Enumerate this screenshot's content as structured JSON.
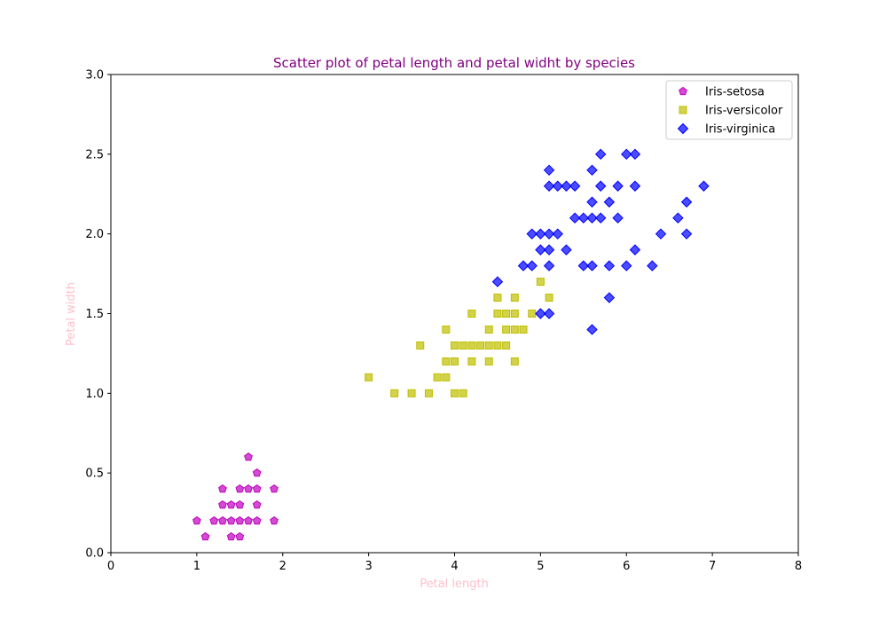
{
  "chart_data": {
    "type": "scatter",
    "title": "Scatter plot of petal length and petal widht by species",
    "xlabel": "Petal length",
    "ylabel": "Petal width",
    "xlim": [
      0,
      8
    ],
    "ylim": [
      0,
      3.0
    ],
    "xticks": [
      "0",
      "1",
      "2",
      "3",
      "4",
      "5",
      "6",
      "7",
      "8"
    ],
    "yticks": [
      "0.0",
      "0.5",
      "1.0",
      "1.5",
      "2.0",
      "2.5",
      "3.0"
    ],
    "grid": false,
    "legend_position": "top-right",
    "colors": {
      "title": "#800080",
      "axis_labels": "#ffc0cb"
    },
    "series": [
      {
        "name": "Iris-setosa",
        "marker": "pentagon",
        "color": "#bf00bf",
        "points": [
          [
            1.0,
            0.2
          ],
          [
            1.1,
            0.1
          ],
          [
            1.2,
            0.2
          ],
          [
            1.3,
            0.2
          ],
          [
            1.3,
            0.3
          ],
          [
            1.3,
            0.4
          ],
          [
            1.4,
            0.1
          ],
          [
            1.4,
            0.2
          ],
          [
            1.4,
            0.3
          ],
          [
            1.5,
            0.1
          ],
          [
            1.5,
            0.2
          ],
          [
            1.5,
            0.3
          ],
          [
            1.5,
            0.4
          ],
          [
            1.6,
            0.2
          ],
          [
            1.6,
            0.4
          ],
          [
            1.6,
            0.6
          ],
          [
            1.7,
            0.2
          ],
          [
            1.7,
            0.3
          ],
          [
            1.7,
            0.4
          ],
          [
            1.7,
            0.5
          ],
          [
            1.9,
            0.2
          ],
          [
            1.9,
            0.4
          ]
        ]
      },
      {
        "name": "Iris-versicolor",
        "marker": "square",
        "color": "#bfbf00",
        "points": [
          [
            3.0,
            1.1
          ],
          [
            3.3,
            1.0
          ],
          [
            3.5,
            1.0
          ],
          [
            3.6,
            1.3
          ],
          [
            3.7,
            1.0
          ],
          [
            3.8,
            1.1
          ],
          [
            3.9,
            1.1
          ],
          [
            3.9,
            1.2
          ],
          [
            3.9,
            1.4
          ],
          [
            4.0,
            1.0
          ],
          [
            4.0,
            1.2
          ],
          [
            4.0,
            1.3
          ],
          [
            4.1,
            1.0
          ],
          [
            4.1,
            1.3
          ],
          [
            4.2,
            1.2
          ],
          [
            4.2,
            1.3
          ],
          [
            4.2,
            1.5
          ],
          [
            4.3,
            1.3
          ],
          [
            4.4,
            1.2
          ],
          [
            4.4,
            1.3
          ],
          [
            4.4,
            1.4
          ],
          [
            4.5,
            1.3
          ],
          [
            4.5,
            1.5
          ],
          [
            4.5,
            1.6
          ],
          [
            4.6,
            1.3
          ],
          [
            4.6,
            1.4
          ],
          [
            4.6,
            1.5
          ],
          [
            4.7,
            1.2
          ],
          [
            4.7,
            1.4
          ],
          [
            4.7,
            1.5
          ],
          [
            4.7,
            1.6
          ],
          [
            4.8,
            1.4
          ],
          [
            4.9,
            1.5
          ],
          [
            5.0,
            1.7
          ],
          [
            5.1,
            1.6
          ]
        ]
      },
      {
        "name": "Iris-virginica",
        "marker": "diamond",
        "color": "#0000ff",
        "points": [
          [
            4.5,
            1.7
          ],
          [
            4.8,
            1.8
          ],
          [
            4.9,
            1.8
          ],
          [
            4.9,
            2.0
          ],
          [
            5.0,
            1.5
          ],
          [
            5.0,
            1.9
          ],
          [
            5.0,
            2.0
          ],
          [
            5.1,
            1.5
          ],
          [
            5.1,
            1.8
          ],
          [
            5.1,
            1.9
          ],
          [
            5.1,
            2.0
          ],
          [
            5.1,
            2.3
          ],
          [
            5.1,
            2.4
          ],
          [
            5.2,
            2.0
          ],
          [
            5.2,
            2.3
          ],
          [
            5.3,
            1.9
          ],
          [
            5.3,
            2.3
          ],
          [
            5.4,
            2.1
          ],
          [
            5.4,
            2.3
          ],
          [
            5.5,
            1.8
          ],
          [
            5.5,
            2.1
          ],
          [
            5.6,
            1.4
          ],
          [
            5.6,
            1.8
          ],
          [
            5.6,
            2.1
          ],
          [
            5.6,
            2.2
          ],
          [
            5.6,
            2.4
          ],
          [
            5.7,
            2.1
          ],
          [
            5.7,
            2.3
          ],
          [
            5.7,
            2.5
          ],
          [
            5.8,
            1.6
          ],
          [
            5.8,
            1.8
          ],
          [
            5.8,
            2.2
          ],
          [
            5.9,
            2.1
          ],
          [
            5.9,
            2.3
          ],
          [
            6.0,
            1.8
          ],
          [
            6.0,
            2.5
          ],
          [
            6.1,
            1.9
          ],
          [
            6.1,
            2.3
          ],
          [
            6.1,
            2.5
          ],
          [
            6.3,
            1.8
          ],
          [
            6.4,
            2.0
          ],
          [
            6.6,
            2.1
          ],
          [
            6.7,
            2.0
          ],
          [
            6.7,
            2.2
          ],
          [
            6.9,
            2.3
          ]
        ]
      }
    ]
  }
}
